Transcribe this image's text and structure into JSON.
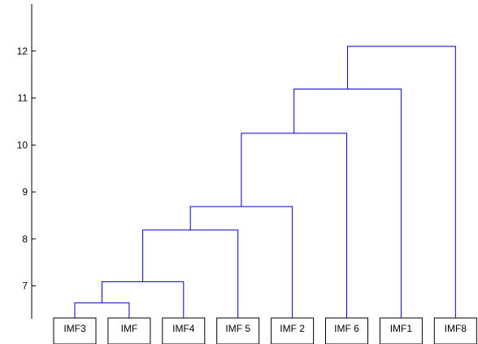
{
  "chart_data": {
    "type": "dendrogram",
    "title": "",
    "xlabel": "",
    "ylabel": "",
    "ylim": [
      6.3,
      13.0
    ],
    "yticks": [
      7,
      8,
      9,
      10,
      11,
      12
    ],
    "grid": false,
    "leaves": [
      "IMF3",
      "IMF",
      "IMF4",
      "IMF 5",
      "IMF 2",
      "IMF 6",
      "IMF1",
      "IMF8"
    ],
    "merges": [
      {
        "left": "L0",
        "right": "L1",
        "height": 6.64
      },
      {
        "left": "M0",
        "right": "L2",
        "height": 7.09
      },
      {
        "left": "M1",
        "right": "L3",
        "height": 8.19
      },
      {
        "left": "M2",
        "right": "L4",
        "height": 8.69
      },
      {
        "left": "M3",
        "right": "L5",
        "height": 10.25
      },
      {
        "left": "M4",
        "right": "L6",
        "height": 11.19
      },
      {
        "left": "M5",
        "right": "L7",
        "height": 12.1
      }
    ],
    "link_color": "#0000c8",
    "axis_color": "#000000"
  }
}
